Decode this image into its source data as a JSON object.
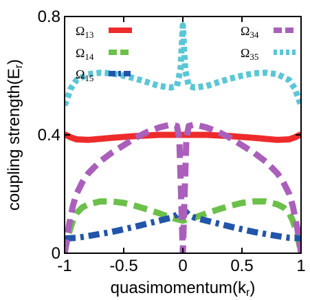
{
  "chart_data": {
    "type": "line",
    "xlabel": "quasimomentum(k",
    "xlabel_sub": "r",
    "xlabel_end": ")",
    "ylabel": "coupling strength(E",
    "ylabel_sub": "r",
    "ylabel_end": ")",
    "xlim": [
      -1,
      1
    ],
    "ylim": [
      0,
      0.8
    ],
    "xticks": [
      -1,
      -0.5,
      0,
      0.5,
      1
    ],
    "xtick_labels": [
      "-1",
      "-0.5",
      "0",
      "0.5",
      "1"
    ],
    "yticks": [
      0,
      0.4,
      0.8
    ],
    "ytick_labels": [
      "0",
      "0.4",
      "0.8"
    ],
    "grid": false,
    "legend_placement": "top",
    "series": [
      {
        "name": "Ω",
        "sub": "13",
        "color": "#ee2b2b",
        "style": "solid",
        "x": [
          -1,
          -0.95,
          -0.9,
          -0.8,
          -0.6,
          -0.4,
          -0.2,
          -0.05,
          0,
          0.05,
          0.2,
          0.4,
          0.6,
          0.8,
          0.9,
          0.95,
          1
        ],
        "y": [
          0.402,
          0.392,
          0.385,
          0.383,
          0.39,
          0.396,
          0.4,
          0.4,
          0.4,
          0.4,
          0.4,
          0.396,
          0.39,
          0.383,
          0.385,
          0.392,
          0.402
        ]
      },
      {
        "name": "Ω",
        "sub": "14",
        "color": "#6cc04a",
        "style": "dash",
        "x": [
          -1,
          -0.97,
          -0.93,
          -0.9,
          -0.85,
          -0.8,
          -0.7,
          -0.6,
          -0.5,
          -0.4,
          -0.3,
          -0.2,
          -0.1,
          -0.05,
          0,
          0.05,
          0.1,
          0.2,
          0.3,
          0.4,
          0.5,
          0.6,
          0.7,
          0.8,
          0.85,
          0.9,
          0.93,
          0.97,
          1
        ],
        "y": [
          0.0,
          0.06,
          0.11,
          0.135,
          0.155,
          0.165,
          0.175,
          0.175,
          0.17,
          0.16,
          0.148,
          0.135,
          0.12,
          0.115,
          0.11,
          0.115,
          0.12,
          0.135,
          0.148,
          0.16,
          0.17,
          0.175,
          0.175,
          0.165,
          0.155,
          0.135,
          0.11,
          0.06,
          0.0
        ]
      },
      {
        "name": "Ω",
        "sub": "15",
        "color": "#2255aa",
        "style": "dashdot",
        "x": [
          -1,
          -0.9,
          -0.8,
          -0.6,
          -0.4,
          -0.2,
          -0.1,
          -0.05,
          0,
          0.05,
          0.1,
          0.2,
          0.4,
          0.6,
          0.8,
          0.9,
          1
        ],
        "y": [
          0.05,
          0.052,
          0.058,
          0.072,
          0.09,
          0.11,
          0.12,
          0.13,
          0.15,
          0.13,
          0.12,
          0.11,
          0.09,
          0.072,
          0.058,
          0.052,
          0.05
        ]
      },
      {
        "name": "Ω",
        "sub": "34",
        "color": "#aa60bb",
        "style": "dash",
        "x": [
          -1,
          -0.97,
          -0.93,
          -0.9,
          -0.85,
          -0.8,
          -0.7,
          -0.6,
          -0.5,
          -0.4,
          -0.3,
          -0.2,
          -0.1,
          -0.05,
          -0.03,
          -0.015,
          0,
          0.015,
          0.03,
          0.05,
          0.1,
          0.2,
          0.3,
          0.4,
          0.5,
          0.6,
          0.7,
          0.8,
          0.85,
          0.9,
          0.93,
          0.97,
          1
        ],
        "y": [
          0.0,
          0.08,
          0.16,
          0.2,
          0.24,
          0.27,
          0.31,
          0.34,
          0.365,
          0.39,
          0.41,
          0.425,
          0.435,
          0.43,
          0.39,
          0.2,
          0.0,
          0.2,
          0.39,
          0.43,
          0.435,
          0.425,
          0.41,
          0.39,
          0.365,
          0.34,
          0.31,
          0.27,
          0.24,
          0.2,
          0.16,
          0.08,
          0.0
        ]
      },
      {
        "name": "Ω",
        "sub": "35",
        "color": "#5bc6d6",
        "style": "dot",
        "x": [
          -1,
          -0.98,
          -0.95,
          -0.9,
          -0.8,
          -0.7,
          -0.6,
          -0.5,
          -0.4,
          -0.3,
          -0.2,
          -0.1,
          -0.05,
          -0.02,
          0,
          0.02,
          0.05,
          0.1,
          0.2,
          0.3,
          0.4,
          0.5,
          0.6,
          0.7,
          0.8,
          0.9,
          0.95,
          0.98,
          1
        ],
        "y": [
          0.5,
          0.52,
          0.555,
          0.585,
          0.605,
          0.61,
          0.608,
          0.6,
          0.59,
          0.578,
          0.565,
          0.56,
          0.565,
          0.62,
          0.77,
          0.62,
          0.565,
          0.56,
          0.565,
          0.578,
          0.59,
          0.6,
          0.608,
          0.61,
          0.605,
          0.585,
          0.555,
          0.52,
          0.5
        ]
      }
    ]
  }
}
